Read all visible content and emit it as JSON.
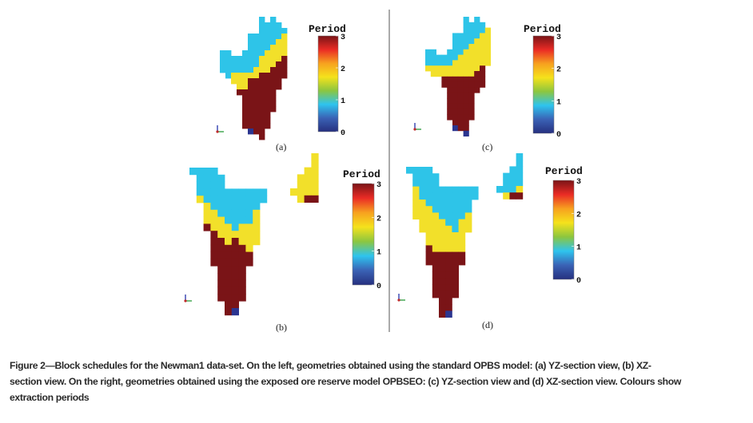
{
  "colors": {
    "0": "#2b3590",
    "1": "#2ec4e8",
    "2": "#f2e02a",
    "3": "#7a1417"
  },
  "colorbar": {
    "title": "Period",
    "ticks": [
      "0",
      "1",
      "2",
      "3"
    ],
    "range": [
      0,
      3
    ],
    "stops": [
      "#26307f",
      "#3a62b5",
      "#2ec4ee",
      "#8cc63f",
      "#f5e21c",
      "#f7a11f",
      "#ea2b25",
      "#7a1417"
    ]
  },
  "panels": [
    {
      "id": "a",
      "label": "(a)",
      "view": "YZ-section",
      "model": "OPBS",
      "blocks": [
        ".......1.1..",
        ".......1111.",
        ".......11111",
        ".....1111112",
        ".....1111122",
        ".....1111222",
        "11..11112222",
        "111111122223",
        "111111122233",
        "111111222333",
        ".12222233333",
        "..222333333.",
        "...22333333.",
        "...3333333..",
        "....333333..",
        "....333333..",
        "....333333..",
        "....33333...",
        "....33333...",
        "....33333...",
        ".....033....",
        ".......3...."
      ],
      "side_blocks": []
    },
    {
      "id": "b",
      "label": "(b)",
      "view": "XZ-section",
      "model": "OPBS",
      "blocks": [
        "1111.......",
        ".1111......",
        ".1111......",
        ".1111111111",
        ".2111111111",
        "..21111111.",
        "..22111112.",
        "..22211112.",
        "..32221222.",
        "...3222222.",
        "...3323222.",
        "...333332..",
        "...333333..",
        "...333333..",
        "....3333...",
        "....3333...",
        "....3333...",
        "....3333...",
        "....3333...",
        ".....33....",
        ".....30...."
      ],
      "side_blocks": [
        "...2",
        "...2",
        "..22",
        ".222",
        ".222",
        "2222",
        ".233"
      ]
    },
    {
      "id": "c",
      "label": "(c)",
      "view": "YZ-section",
      "model": "OPBSEO",
      "blocks": [
        ".......1.1..",
        ".......1111.",
        ".......11112",
        ".....1111122",
        ".....1111222",
        ".....1112222",
        "11..11122222",
        "111111222222",
        "111112222222",
        "22222222223.",
        ".2222222233.",
        "...33333333.",
        "...33333333.",
        "....333333..",
        "....33333...",
        "....33333...",
        "....33333...",
        "....33333...",
        "....33333...",
        ".....333....",
        ".....033....",
        ".......0...."
      ],
      "side_blocks": []
    },
    {
      "id": "d",
      "label": "(d)",
      "view": "XZ-section",
      "model": "OPBSEO",
      "blocks": [
        "1111.......",
        ".1111......",
        ".1111......",
        ".2111111111",
        ".2111111111",
        ".221111111.",
        ".222111111.",
        ".222211112.",
        "..22221122.",
        "..22222122.",
        "...222222..",
        "...222222..",
        "...322222..",
        "...333333..",
        "...333333..",
        "....3333...",
        "....3333...",
        "....3333...",
        "....3333...",
        "....3333...",
        ".....33....",
        ".....33....",
        ".....30...."
      ],
      "side_blocks": [
        "...1",
        "...1",
        "..11",
        ".111",
        ".111",
        "1112",
        ".233"
      ]
    }
  ],
  "caption": {
    "lines": [
      "Figure 2—Block schedules for the Newman1 data-set. On the left, geometries obtained using the standard OPBS model: (a) YZ-section view, (b) XZ-",
      "section view. On the right, geometries obtained using the exposed ore reserve model OPBSEO: (c) YZ-section view and (d) XZ-section view. Colours show",
      "extraction periods"
    ]
  }
}
